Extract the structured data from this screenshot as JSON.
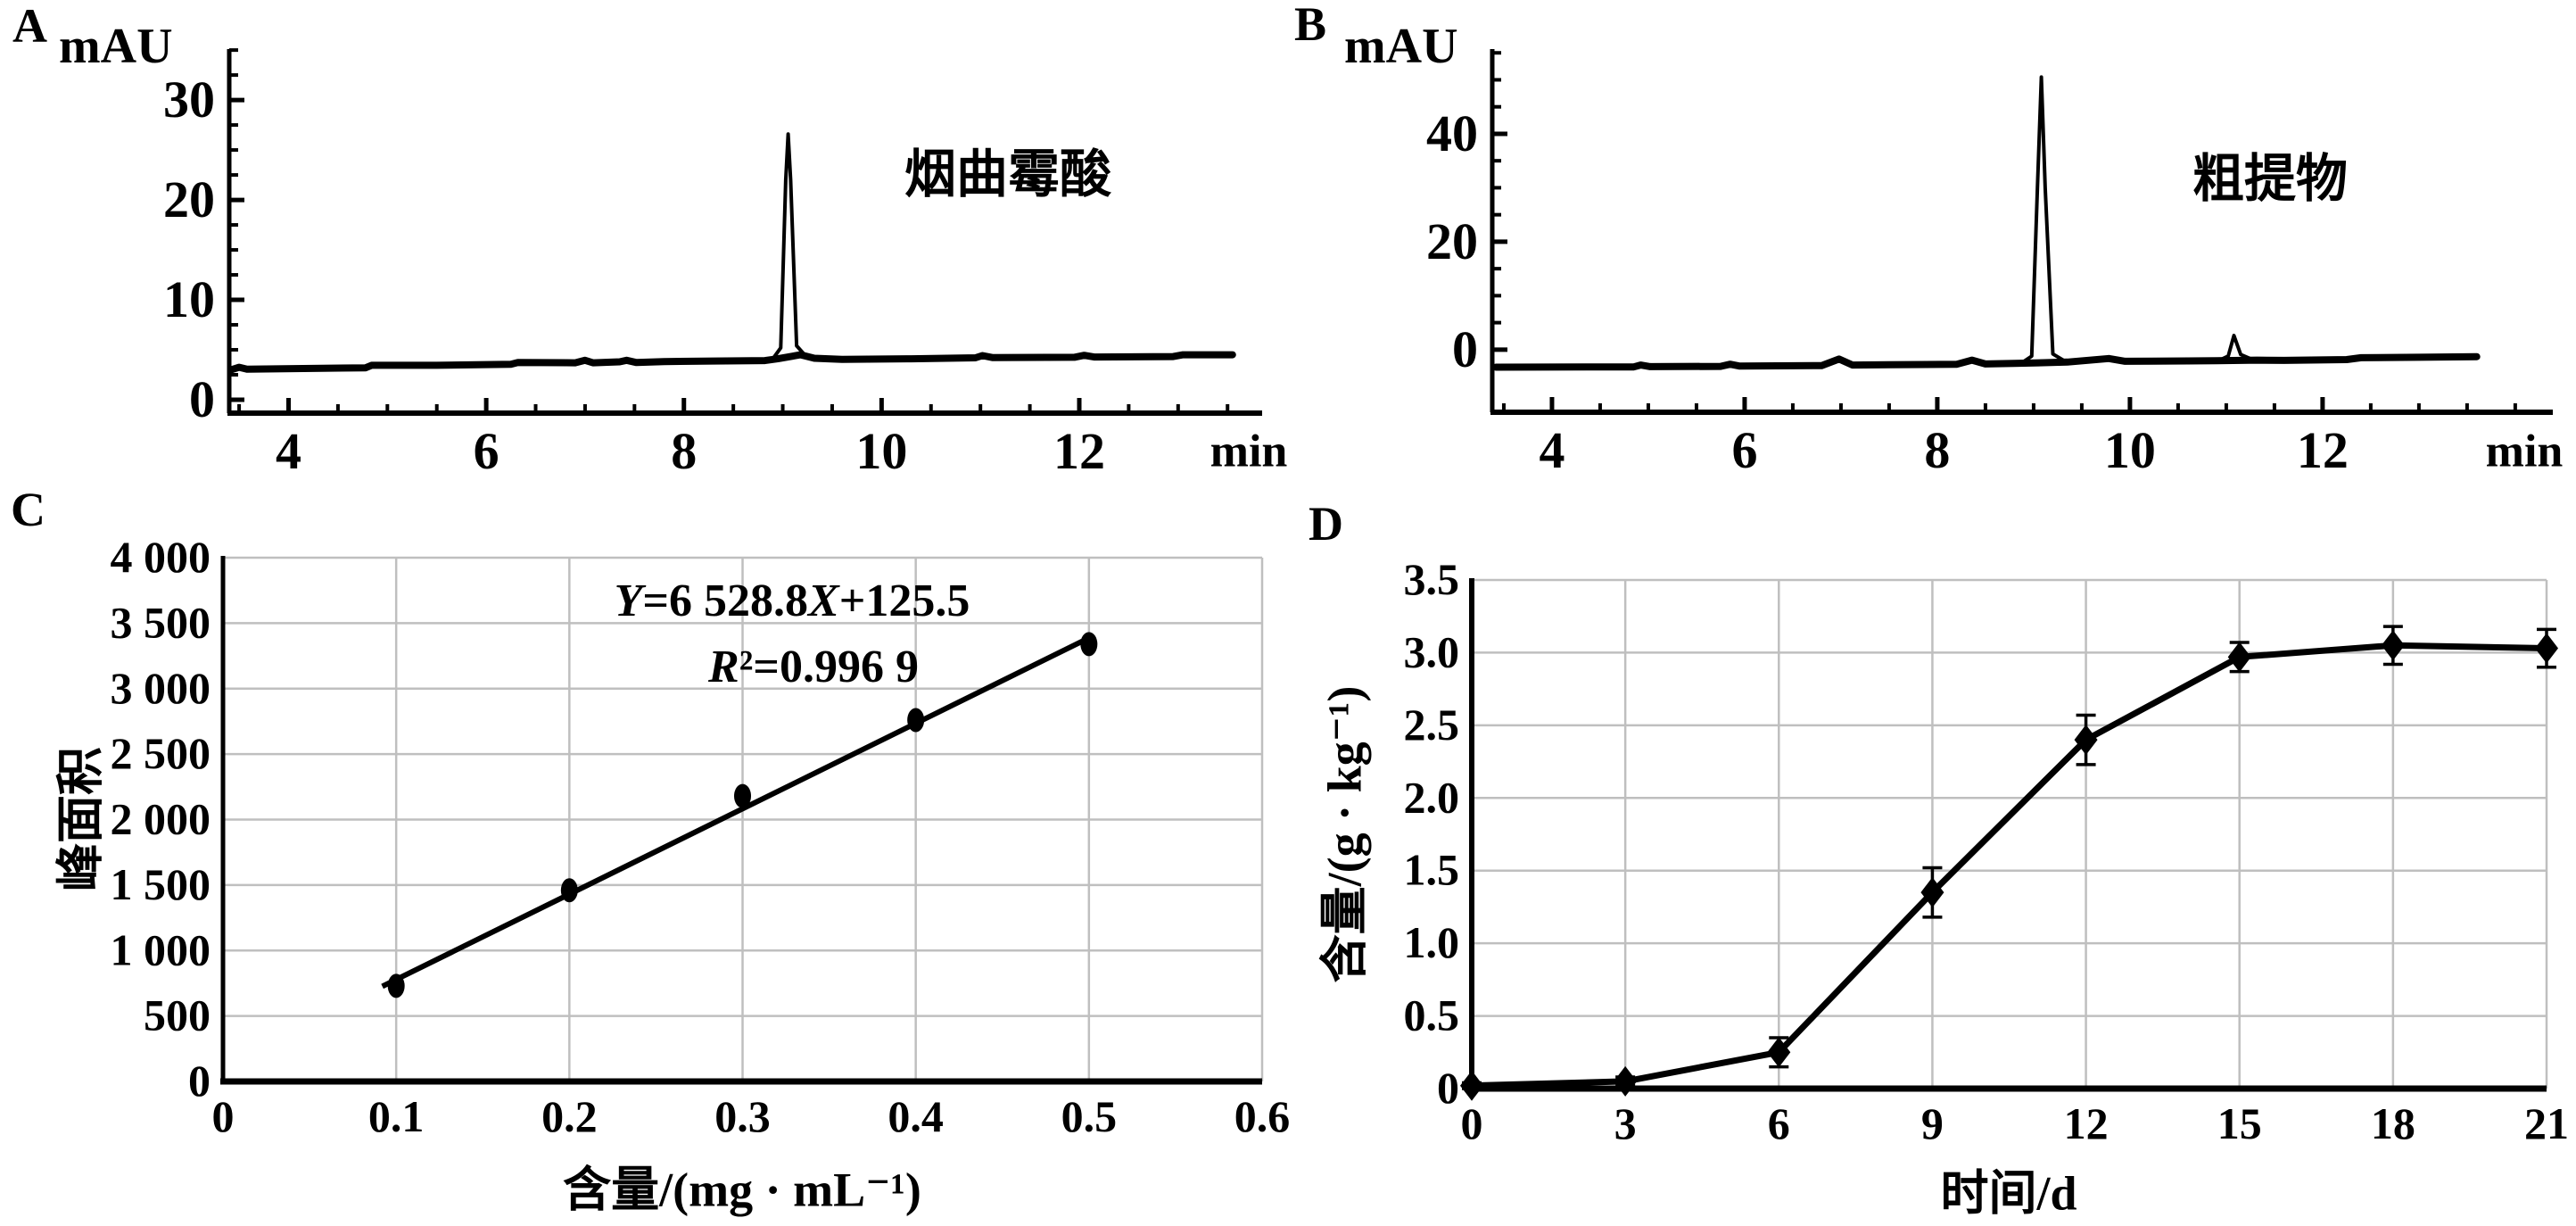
{
  "page": {
    "background": "#ffffff"
  },
  "colors": {
    "ink": "#000000",
    "grid": "#bfbfbf"
  },
  "chart_data": [
    {
      "panel": "A",
      "type": "line",
      "variant": "chromatogram",
      "ylabel": "mAU",
      "xlabel": "min",
      "annotation": "烟曲霉酸",
      "xlim": [
        3.4,
        13.85
      ],
      "ylim": [
        -1.34,
        35.1
      ],
      "x_ticks": [
        4,
        6,
        8,
        10,
        12
      ],
      "x_tick_labels": [
        "4",
        "6",
        "8",
        "10",
        "12"
      ],
      "x_minor_step": 0.5,
      "y_ticks": [
        0,
        10,
        20,
        30
      ],
      "y_tick_labels": [
        "0",
        "10",
        "20",
        "30"
      ],
      "y_minor_step": 2.5,
      "grid": false,
      "peak_retention_min": 9.05,
      "peak_height_mAU": 26.6,
      "series": [
        {
          "name": "baseline",
          "width": 8,
          "points": [
            [
              3.42,
              3.0
            ],
            [
              3.5,
              3.25
            ],
            [
              3.58,
              3.05
            ],
            [
              4.78,
              3.2
            ],
            [
              4.84,
              3.45
            ],
            [
              5.5,
              3.45
            ],
            [
              6.25,
              3.55
            ],
            [
              6.32,
              3.72
            ],
            [
              6.9,
              3.7
            ],
            [
              7.0,
              3.95
            ],
            [
              7.08,
              3.7
            ],
            [
              7.35,
              3.8
            ],
            [
              7.42,
              3.95
            ],
            [
              7.52,
              3.72
            ],
            [
              7.8,
              3.82
            ],
            [
              8.3,
              3.88
            ],
            [
              8.82,
              3.92
            ],
            [
              8.95,
              4.1
            ],
            [
              9.18,
              4.5
            ],
            [
              9.32,
              4.15
            ],
            [
              9.6,
              4.05
            ],
            [
              10.3,
              4.1
            ],
            [
              10.95,
              4.2
            ],
            [
              11.02,
              4.42
            ],
            [
              11.12,
              4.22
            ],
            [
              11.95,
              4.25
            ],
            [
              12.05,
              4.45
            ],
            [
              12.15,
              4.28
            ],
            [
              12.95,
              4.32
            ],
            [
              13.05,
              4.5
            ],
            [
              13.55,
              4.5
            ]
          ]
        },
        {
          "name": "main-peak",
          "width": 4,
          "points": [
            [
              8.9,
              4.1
            ],
            [
              8.98,
              5.2
            ],
            [
              9.03,
              22.0
            ],
            [
              9.055,
              26.6
            ],
            [
              9.08,
              22.0
            ],
            [
              9.14,
              5.4
            ],
            [
              9.24,
              4.3
            ]
          ]
        }
      ]
    },
    {
      "panel": "B",
      "type": "line",
      "variant": "chromatogram",
      "ylabel": "mAU",
      "xlabel": "min",
      "annotation": "粗提物",
      "xlim": [
        3.38,
        14.39
      ],
      "ylim": [
        -11.6,
        55.7
      ],
      "x_ticks": [
        4,
        6,
        8,
        10,
        12
      ],
      "x_tick_labels": [
        "4",
        "6",
        "8",
        "10",
        "12"
      ],
      "x_minor_step": 0.5,
      "y_ticks": [
        0,
        20,
        40
      ],
      "y_tick_labels": [
        "0",
        "20",
        "40"
      ],
      "y_minor_step": 5,
      "grid": false,
      "peak_retention_min": 9.08,
      "peak_height_mAU": 50.5,
      "series": [
        {
          "name": "baseline",
          "width": 8,
          "points": [
            [
              3.42,
              -3.25
            ],
            [
              4.85,
              -3.2
            ],
            [
              4.92,
              -2.85
            ],
            [
              5.02,
              -3.15
            ],
            [
              5.75,
              -3.1
            ],
            [
              5.85,
              -2.7
            ],
            [
              5.95,
              -3.05
            ],
            [
              6.8,
              -2.95
            ],
            [
              6.98,
              -1.75
            ],
            [
              7.12,
              -2.85
            ],
            [
              7.5,
              -2.8
            ],
            [
              8.2,
              -2.72
            ],
            [
              8.36,
              -1.95
            ],
            [
              8.5,
              -2.65
            ],
            [
              8.8,
              -2.55
            ],
            [
              9.35,
              -2.3
            ],
            [
              9.78,
              -1.65
            ],
            [
              9.95,
              -2.15
            ],
            [
              10.6,
              -2.1
            ],
            [
              10.9,
              -2.05
            ],
            [
              11.32,
              -1.95
            ],
            [
              11.6,
              -2.0
            ],
            [
              12.25,
              -1.85
            ],
            [
              12.4,
              -1.5
            ],
            [
              13.0,
              -1.42
            ],
            [
              13.6,
              -1.3
            ]
          ]
        },
        {
          "name": "main-peak",
          "width": 4,
          "points": [
            [
              8.88,
              -2.4
            ],
            [
              8.98,
              -1.2
            ],
            [
              9.04,
              30.0
            ],
            [
              9.08,
              50.5
            ],
            [
              9.12,
              30.0
            ],
            [
              9.2,
              -0.8
            ],
            [
              9.32,
              -2.1
            ]
          ]
        },
        {
          "name": "minor-peak",
          "width": 4,
          "points": [
            [
              10.92,
              -2.05
            ],
            [
              11.02,
              -1.2
            ],
            [
              11.08,
              2.6
            ],
            [
              11.15,
              -0.9
            ],
            [
              11.28,
              -1.9
            ]
          ]
        }
      ]
    },
    {
      "panel": "C",
      "type": "scatter",
      "variant": "calibration",
      "ylabel": "峰面积",
      "xlabel": "含量/(mg · mL⁻¹)",
      "xlim": [
        0,
        0.6
      ],
      "ylim": [
        0,
        4000
      ],
      "x_ticks": [
        0,
        0.1,
        0.2,
        0.3,
        0.4,
        0.5,
        0.6
      ],
      "x_tick_labels": [
        "0",
        "0.1",
        "0.2",
        "0.3",
        "0.4",
        "0.5",
        "0.6"
      ],
      "y_ticks": [
        0,
        500,
        1000,
        1500,
        2000,
        2500,
        3000,
        3500,
        4000
      ],
      "y_tick_labels": [
        "0",
        "500",
        "1 000",
        "1 500",
        "2 000",
        "2 500",
        "3 000",
        "3 500",
        "4 000"
      ],
      "grid": true,
      "points": [
        [
          0.1,
          730
        ],
        [
          0.2,
          1460
        ],
        [
          0.3,
          2180
        ],
        [
          0.4,
          2760
        ],
        [
          0.5,
          3340
        ]
      ],
      "fit_line": {
        "x1": 0.092,
        "y1": 726,
        "x2": 0.502,
        "y2": 3400
      },
      "annotation_lines": [
        "Y=6 528.8X+125.5",
        "R²=0.996 9"
      ],
      "regression": {
        "slope": 6528.8,
        "intercept": 125.5,
        "r_squared": 0.9969
      }
    },
    {
      "panel": "D",
      "type": "line",
      "variant": "errorbar",
      "ylabel": "含量/(g · kg⁻¹)",
      "xlabel": "时间/d",
      "xlim": [
        0,
        21
      ],
      "ylim": [
        0,
        3.5
      ],
      "x_ticks": [
        0,
        3,
        6,
        9,
        12,
        15,
        18,
        21
      ],
      "x_tick_labels": [
        "0",
        "3",
        "6",
        "9",
        "12",
        "15",
        "18",
        "21"
      ],
      "y_ticks": [
        0,
        0.5,
        1.0,
        1.5,
        2.0,
        2.5,
        3.0,
        3.5
      ],
      "y_tick_labels": [
        "0",
        "0.5",
        "1.0",
        "1.5",
        "2.0",
        "2.5",
        "3.0",
        "3.5"
      ],
      "grid": true,
      "points": [
        [
          0,
          0.02
        ],
        [
          3,
          0.05
        ],
        [
          6,
          0.25
        ],
        [
          9,
          1.35
        ],
        [
          12,
          2.4
        ],
        [
          15,
          2.97
        ],
        [
          18,
          3.05
        ],
        [
          21,
          3.03
        ]
      ],
      "errors": [
        0.02,
        0.03,
        0.1,
        0.17,
        0.17,
        0.1,
        0.13,
        0.13
      ]
    }
  ]
}
